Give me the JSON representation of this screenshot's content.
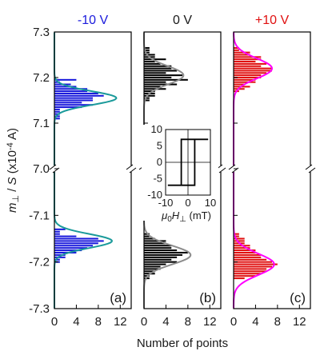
{
  "chart_data": {
    "type": "bar",
    "orientation": "horizontal",
    "y_axis_label": "m⊥ / S (x10⁻⁴ A)",
    "x_axis_label": "Number of points",
    "y_upper": {
      "range": [
        7.0,
        7.3
      ],
      "ticks": [
        "7.3",
        "7.2",
        "7.1",
        "7.0"
      ]
    },
    "y_lower": {
      "range": [
        -7.3,
        -7.0
      ],
      "ticks": [
        "-7.1",
        "-7.2",
        "-7.3"
      ]
    },
    "x_range": [
      0,
      14
    ],
    "x_ticks": [
      "0",
      "4",
      "8",
      "12"
    ],
    "bin_width": 0.005,
    "panels": [
      {
        "label": "(a)",
        "title": "-10 V",
        "title_color": "#1a1adc",
        "bar_color": "#1a1adc",
        "fit_color": "#1a9a9a",
        "upper_bars": [
          {
            "y": 7.195,
            "n": 4
          },
          {
            "y": 7.19,
            "n": 1
          },
          {
            "y": 7.185,
            "n": 3
          },
          {
            "y": 7.18,
            "n": 4
          },
          {
            "y": 7.175,
            "n": 6
          },
          {
            "y": 7.17,
            "n": 6
          },
          {
            "y": 7.165,
            "n": 8
          },
          {
            "y": 7.16,
            "n": 9
          },
          {
            "y": 7.155,
            "n": 7
          },
          {
            "y": 7.15,
            "n": 7
          },
          {
            "y": 7.145,
            "n": 5
          },
          {
            "y": 7.14,
            "n": 7
          },
          {
            "y": 7.135,
            "n": 5
          },
          {
            "y": 7.13,
            "n": 1
          },
          {
            "y": 7.125,
            "n": 1
          },
          {
            "y": 7.12,
            "n": 1
          },
          {
            "y": 7.115,
            "n": 1
          },
          {
            "y": 7.11,
            "n": 1
          }
        ],
        "upper_fit": {
          "center": 7.155,
          "sigma": 0.015,
          "amplitude": 11.3
        },
        "lower_bars": [
          {
            "y": -7.13,
            "n": 2
          },
          {
            "y": -7.135,
            "n": 1
          },
          {
            "y": -7.14,
            "n": 1
          },
          {
            "y": -7.145,
            "n": 4
          },
          {
            "y": -7.15,
            "n": 8
          },
          {
            "y": -7.155,
            "n": 9
          },
          {
            "y": -7.16,
            "n": 8
          },
          {
            "y": -7.165,
            "n": 7
          },
          {
            "y": -7.17,
            "n": 6
          },
          {
            "y": -7.175,
            "n": 5
          },
          {
            "y": -7.18,
            "n": 4
          },
          {
            "y": -7.185,
            "n": 2
          },
          {
            "y": -7.19,
            "n": 2
          },
          {
            "y": -7.195,
            "n": 1
          },
          {
            "y": -7.2,
            "n": 1
          }
        ],
        "lower_fit": {
          "center": -7.155,
          "sigma": 0.015,
          "amplitude": 10.5
        }
      },
      {
        "label": "(b)",
        "title": "0 V",
        "title_color": "#1a1a1a",
        "bar_color": "#000000",
        "fit_color": "#8c8c8c",
        "upper_bars": [
          {
            "y": 7.265,
            "n": 1
          },
          {
            "y": 7.26,
            "n": 1
          },
          {
            "y": 7.255,
            "n": 1
          },
          {
            "y": 7.25,
            "n": 2
          },
          {
            "y": 7.245,
            "n": 2
          },
          {
            "y": 7.24,
            "n": 4
          },
          {
            "y": 7.235,
            "n": 2
          },
          {
            "y": 7.23,
            "n": 3
          },
          {
            "y": 7.225,
            "n": 5
          },
          {
            "y": 7.22,
            "n": 5
          },
          {
            "y": 7.215,
            "n": 6
          },
          {
            "y": 7.21,
            "n": 4
          },
          {
            "y": 7.205,
            "n": 7
          },
          {
            "y": 7.2,
            "n": 5
          },
          {
            "y": 7.195,
            "n": 8
          },
          {
            "y": 7.19,
            "n": 4
          },
          {
            "y": 7.185,
            "n": 6
          },
          {
            "y": 7.18,
            "n": 3
          },
          {
            "y": 7.175,
            "n": 4
          },
          {
            "y": 7.17,
            "n": 2
          },
          {
            "y": 7.165,
            "n": 2
          },
          {
            "y": 7.16,
            "n": 2
          },
          {
            "y": 7.155,
            "n": 1
          },
          {
            "y": 7.15,
            "n": 1
          }
        ],
        "upper_fit": {
          "center": 7.205,
          "sigma": 0.02,
          "amplitude": 7.2
        },
        "lower_bars": [
          {
            "y": -7.14,
            "n": 1
          },
          {
            "y": -7.145,
            "n": 1
          },
          {
            "y": -7.15,
            "n": 2
          },
          {
            "y": -7.155,
            "n": 4
          },
          {
            "y": -7.16,
            "n": 4
          },
          {
            "y": -7.165,
            "n": 5
          },
          {
            "y": -7.17,
            "n": 5
          },
          {
            "y": -7.175,
            "n": 6
          },
          {
            "y": -7.18,
            "n": 8
          },
          {
            "y": -7.185,
            "n": 7
          },
          {
            "y": -7.19,
            "n": 6
          },
          {
            "y": -7.195,
            "n": 5
          },
          {
            "y": -7.2,
            "n": 6
          },
          {
            "y": -7.205,
            "n": 4
          },
          {
            "y": -7.21,
            "n": 3
          },
          {
            "y": -7.215,
            "n": 3
          },
          {
            "y": -7.22,
            "n": 2
          },
          {
            "y": -7.225,
            "n": 2
          },
          {
            "y": -7.23,
            "n": 1
          },
          {
            "y": -7.235,
            "n": 1
          }
        ],
        "lower_fit": {
          "center": -7.185,
          "sigma": 0.02,
          "amplitude": 8.5
        },
        "inset": {
          "x_label": "μ0H⊥ (mT)",
          "x_ticks": [
            "-10",
            "0",
            "10"
          ],
          "y_ticks": [
            "10",
            "5",
            "0",
            "-5",
            "-10"
          ],
          "x_range": [
            -10,
            10
          ],
          "y_range": [
            -10,
            10
          ],
          "coercive_field": 3,
          "saturation": 7
        }
      },
      {
        "label": "(c)",
        "title": "+10 V",
        "title_color": "#e01010",
        "bar_color": "#e01010",
        "fit_color": "#ff00ff",
        "upper_bars": [
          {
            "y": 7.265,
            "n": 1
          },
          {
            "y": 7.26,
            "n": 1
          },
          {
            "y": 7.255,
            "n": 3
          },
          {
            "y": 7.25,
            "n": 3
          },
          {
            "y": 7.245,
            "n": 5
          },
          {
            "y": 7.24,
            "n": 5
          },
          {
            "y": 7.235,
            "n": 4
          },
          {
            "y": 7.23,
            "n": 6
          },
          {
            "y": 7.225,
            "n": 5
          },
          {
            "y": 7.22,
            "n": 7
          },
          {
            "y": 7.215,
            "n": 7
          },
          {
            "y": 7.21,
            "n": 6
          },
          {
            "y": 7.205,
            "n": 5
          },
          {
            "y": 7.2,
            "n": 5
          },
          {
            "y": 7.195,
            "n": 4
          },
          {
            "y": 7.19,
            "n": 4
          },
          {
            "y": 7.185,
            "n": 2
          },
          {
            "y": 7.18,
            "n": 3
          },
          {
            "y": 7.175,
            "n": 2
          },
          {
            "y": 7.17,
            "n": 1
          }
        ],
        "upper_fit": {
          "center": 7.22,
          "sigma": 0.022,
          "amplitude": 7.0
        },
        "lower_bars": [
          {
            "y": -7.14,
            "n": 1
          },
          {
            "y": -7.145,
            "n": 1
          },
          {
            "y": -7.15,
            "n": 2
          },
          {
            "y": -7.155,
            "n": 2
          },
          {
            "y": -7.16,
            "n": 2
          },
          {
            "y": -7.165,
            "n": 3
          },
          {
            "y": -7.17,
            "n": 3
          },
          {
            "y": -7.175,
            "n": 4
          },
          {
            "y": -7.18,
            "n": 4
          },
          {
            "y": -7.185,
            "n": 5
          },
          {
            "y": -7.19,
            "n": 5
          },
          {
            "y": -7.195,
            "n": 6
          },
          {
            "y": -7.2,
            "n": 7
          },
          {
            "y": -7.205,
            "n": 8
          },
          {
            "y": -7.21,
            "n": 7
          },
          {
            "y": -7.215,
            "n": 6
          },
          {
            "y": -7.22,
            "n": 6
          },
          {
            "y": -7.225,
            "n": 5
          },
          {
            "y": -7.23,
            "n": 4
          },
          {
            "y": -7.235,
            "n": 2
          }
        ],
        "lower_fit": {
          "center": -7.205,
          "sigma": 0.023,
          "amplitude": 7.4
        }
      }
    ]
  }
}
